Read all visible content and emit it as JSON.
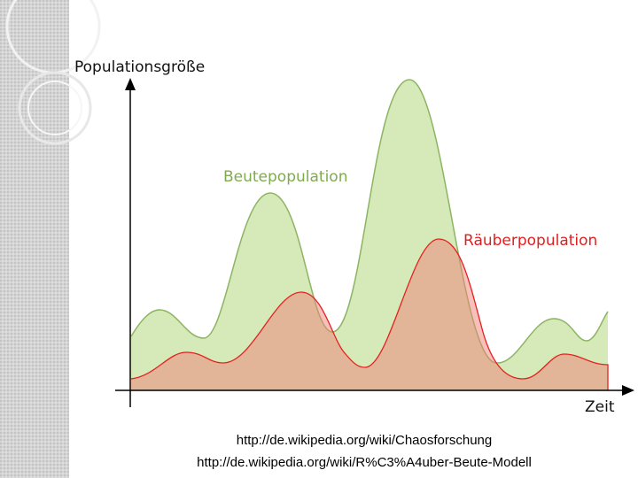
{
  "diagram": {
    "y_axis_label": "Populationsgröße",
    "x_axis_label": "Zeit",
    "curves": [
      {
        "label": "Beutepopulation"
      },
      {
        "label": "Räuberpopulation"
      }
    ]
  },
  "footer": {
    "links": [
      "http://de.wikipedia.org/wiki/Chaosforschung",
      "http://de.wikipedia.org/wiki/R%C3%A4uber-Beute-Modell"
    ]
  }
}
